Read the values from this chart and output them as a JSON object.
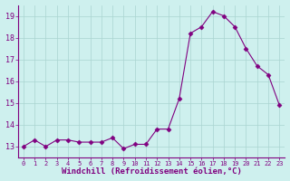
{
  "x": [
    0,
    1,
    2,
    3,
    4,
    5,
    6,
    7,
    8,
    9,
    10,
    11,
    12,
    13,
    14,
    15,
    16,
    17,
    18,
    19,
    20,
    21,
    22,
    23
  ],
  "y": [
    13.0,
    13.3,
    13.0,
    13.3,
    13.3,
    13.2,
    13.2,
    13.2,
    13.4,
    12.9,
    13.1,
    13.1,
    13.8,
    13.8,
    15.2,
    18.2,
    18.5,
    19.2,
    19.0,
    18.5,
    17.5,
    16.7,
    16.3,
    14.9
  ],
  "xlabel": "Windchill (Refroidissement éolien,°C)",
  "xlim": [
    -0.5,
    23.5
  ],
  "ylim": [
    12.5,
    19.5
  ],
  "yticks": [
    13,
    14,
    15,
    16,
    17,
    18,
    19
  ],
  "xticks": [
    0,
    1,
    2,
    3,
    4,
    5,
    6,
    7,
    8,
    9,
    10,
    11,
    12,
    13,
    14,
    15,
    16,
    17,
    18,
    19,
    20,
    21,
    22,
    23
  ],
  "line_color": "#800080",
  "marker": "D",
  "marker_size": 2.5,
  "bg_color": "#cef0ee",
  "grid_color": "#aad4d0",
  "tick_color": "#800080",
  "label_color": "#800080",
  "font_family": "monospace"
}
